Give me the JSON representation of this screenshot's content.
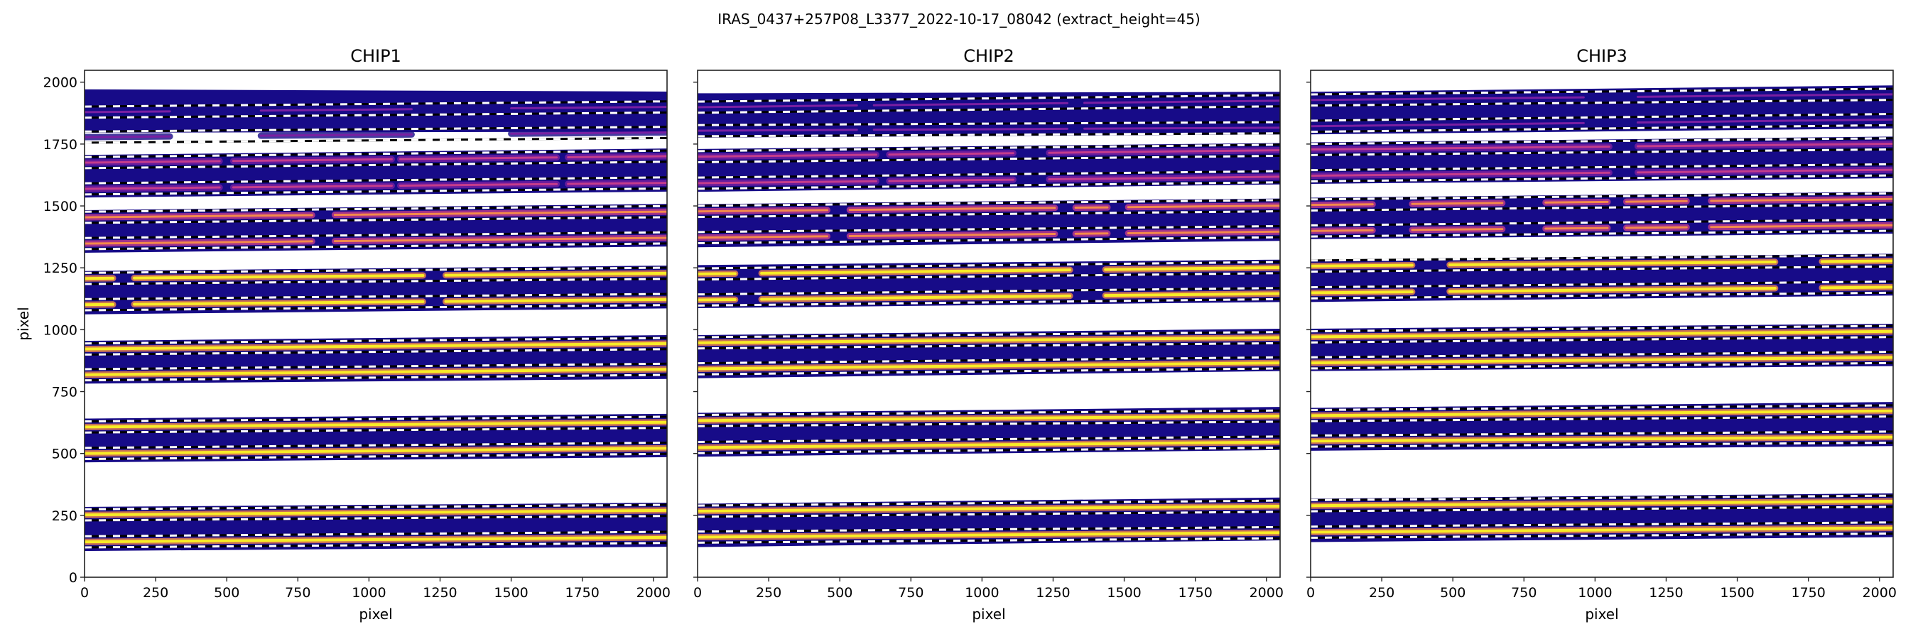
{
  "figure": {
    "suptitle": "IRAS_0437+257P08_L3377_2022-10-17_08042  (extract_height=45)"
  },
  "colors": {
    "band": "#170b88",
    "faint": "#7a1fa2",
    "medium": "#c43c8c",
    "bright": "#f48a4a",
    "peak": "#f9ec26",
    "axes": "#222222"
  },
  "chart_data": [
    {
      "type": "heatmap",
      "title": "CHIP1",
      "xlabel": "pixel",
      "ylabel": "pixel",
      "xlim": [
        0,
        2048
      ],
      "ylim": [
        0,
        2048
      ],
      "xticks": [
        0,
        250,
        500,
        750,
        1000,
        1250,
        1500,
        1750,
        2000
      ],
      "yticks": [
        0,
        250,
        500,
        750,
        1000,
        1250,
        1500,
        1750,
        2000
      ],
      "show_ytick_labels": true,
      "extract_height": 45,
      "orders": [
        {
          "band_bottom": [
            1796,
            1800
          ],
          "band_top": [
            1971,
            1962
          ],
          "traces": [
            [
              1879,
              1900
            ],
            [
              1778,
              1797
            ]
          ],
          "intensity": 0.35,
          "gaps": [
            [
              300,
              620
            ],
            [
              1150,
              1500
            ]
          ]
        },
        {
          "band_bottom": [
            1534,
            1558
          ],
          "band_top": [
            1706,
            1732
          ],
          "traces": [
            [
              1675,
              1701
            ],
            [
              1569,
              1593
            ]
          ],
          "intensity": 0.55,
          "gaps": [
            [
              475,
              523
            ],
            [
              1080,
              1110
            ],
            [
              1660,
              1700
            ]
          ]
        },
        {
          "band_bottom": [
            1311,
            1336
          ],
          "band_top": [
            1483,
            1508
          ],
          "traces": [
            [
              1454,
              1477
            ],
            [
              1348,
              1371
            ]
          ],
          "intensity": 0.75,
          "gaps": [
            [
              800,
              880
            ]
          ]
        },
        {
          "band_bottom": [
            1062,
            1086
          ],
          "band_top": [
            1237,
            1259
          ],
          "traces": [
            [
              1207,
              1228
            ],
            [
              1101,
              1122
            ]
          ],
          "intensity": 1.0,
          "gaps": [
            [
              100,
              175
            ],
            [
              1190,
              1270
            ]
          ]
        },
        {
          "band_bottom": [
            782,
            801
          ],
          "band_top": [
            955,
            978
          ],
          "traces": [
            [
              922,
              944
            ],
            [
              818,
              840
            ]
          ],
          "intensity": 1.0,
          "gaps": []
        },
        {
          "band_bottom": [
            464,
            485
          ],
          "band_top": [
            641,
            660
          ],
          "traces": [
            [
              607,
              626
            ],
            [
              500,
              521
            ]
          ],
          "intensity": 1.0,
          "gaps": []
        },
        {
          "band_bottom": [
            106,
            123
          ],
          "band_top": [
            284,
            301
          ],
          "traces": [
            [
              252,
              270
            ],
            [
              143,
              161
            ]
          ],
          "intensity": 1.0,
          "gaps": []
        }
      ]
    },
    {
      "type": "heatmap",
      "title": "CHIP2",
      "xlabel": "pixel",
      "ylabel": "",
      "xlim": [
        0,
        2048
      ],
      "ylim": [
        0,
        2048
      ],
      "xticks": [
        0,
        250,
        500,
        750,
        1000,
        1250,
        1500,
        1750,
        2000
      ],
      "yticks": [
        0,
        250,
        500,
        750,
        1000,
        1250,
        1500,
        1750,
        2000
      ],
      "show_ytick_labels": false,
      "extract_height": 45,
      "orders": [
        {
          "band_bottom": [
            1776,
            1789
          ],
          "band_top": [
            1955,
            1961
          ],
          "traces": [
            [
              1899,
              1925
            ],
            [
              1804,
              1816
            ]
          ],
          "intensity": 0.4,
          "gaps": [
            [
              560,
              620
            ],
            [
              1300,
              1360
            ]
          ]
        },
        {
          "band_bottom": [
            1557,
            1587
          ],
          "band_top": [
            1730,
            1754
          ],
          "traces": [
            [
              1699,
              1725
            ],
            [
              1592,
              1618
            ]
          ],
          "intensity": 0.55,
          "gaps": [
            [
              628,
              674
            ],
            [
              1110,
              1236
            ]
          ]
        },
        {
          "band_bottom": [
            1333,
            1359
          ],
          "band_top": [
            1507,
            1530
          ],
          "traces": [
            [
              1478,
              1501
            ],
            [
              1372,
              1396
            ]
          ],
          "intensity": 0.75,
          "gaps": [
            [
              456,
              535
            ],
            [
              1256,
              1329
            ],
            [
              1441,
              1514
            ]
          ]
        },
        {
          "band_bottom": [
            1087,
            1112
          ],
          "band_top": [
            1261,
            1283
          ],
          "traces": [
            [
              1225,
              1251
            ],
            [
              1120,
              1146
            ]
          ],
          "intensity": 1.0,
          "gaps": [
            [
              132,
              225
            ],
            [
              1309,
              1434
            ]
          ]
        },
        {
          "band_bottom": [
            804,
            833
          ],
          "band_top": [
            978,
            1004
          ],
          "traces": [
            [
              947,
              968
            ],
            [
              842,
              866
            ]
          ],
          "intensity": 1.0,
          "gaps": []
        },
        {
          "band_bottom": [
            487,
            514
          ],
          "band_top": [
            664,
            688
          ],
          "traces": [
            [
              633,
              651
            ],
            [
              524,
              546
            ]
          ],
          "intensity": 1.0,
          "gaps": []
        },
        {
          "band_bottom": [
            122,
            149
          ],
          "band_top": [
            297,
            322
          ],
          "traces": [
            [
              267,
              287
            ],
            [
              162,
              180
            ]
          ],
          "intensity": 1.0,
          "gaps": []
        }
      ]
    },
    {
      "type": "heatmap",
      "title": "CHIP3",
      "xlabel": "pixel",
      "ylabel": "",
      "xlim": [
        0,
        2048
      ],
      "ylim": [
        0,
        2048
      ],
      "xticks": [
        0,
        250,
        500,
        750,
        1000,
        1250,
        1500,
        1750,
        2000
      ],
      "yticks": [
        0,
        250,
        500,
        750,
        1000,
        1250,
        1500,
        1750,
        2000
      ],
      "show_ytick_labels": false,
      "extract_height": 45,
      "orders": [
        {
          "band_bottom": [
            1789,
            1813
          ],
          "band_top": [
            1961,
            1987
          ],
          "traces": [
            [
              1928,
              1951
            ],
            [
              1822,
              1849
            ]
          ],
          "intensity": 0.45,
          "gaps": [
            [
              960,
              1150
            ]
          ]
        },
        {
          "band_bottom": [
            1589,
            1612
          ],
          "band_top": [
            1757,
            1780
          ],
          "traces": [
            [
              1728,
              1751
            ],
            [
              1622,
              1646
            ]
          ],
          "intensity": 0.55,
          "gaps": [
            [
              1050,
              1150
            ]
          ]
        },
        {
          "band_bottom": [
            1366,
            1388
          ],
          "band_top": [
            1533,
            1557
          ],
          "traces": [
            [
              1504,
              1528
            ],
            [
              1399,
              1422
            ]
          ],
          "intensity": 0.75,
          "gaps": [
            [
              218,
              357
            ],
            [
              674,
              826
            ],
            [
              1044,
              1110
            ],
            [
              1322,
              1408
            ]
          ]
        },
        {
          "band_bottom": [
            1112,
            1138
          ],
          "band_top": [
            1283,
            1307
          ],
          "traces": [
            [
              1257,
              1278
            ],
            [
              1149,
              1172
            ]
          ],
          "intensity": 1.0,
          "gaps": [
            [
              357,
              489
            ],
            [
              1633,
              1798
            ]
          ]
        },
        {
          "band_bottom": [
            833,
            853
          ],
          "band_top": [
            1004,
            1024
          ],
          "traces": [
            [
              971,
              993
            ],
            [
              866,
              888
            ]
          ],
          "intensity": 1.0,
          "gaps": []
        },
        {
          "band_bottom": [
            511,
            530
          ],
          "band_top": [
            684,
            708
          ],
          "traces": [
            [
              653,
              672
            ],
            [
              550,
              566
            ]
          ],
          "intensity": 1.0,
          "gaps": []
        },
        {
          "band_bottom": [
            142,
            162
          ],
          "band_top": [
            317,
            339
          ],
          "traces": [
            [
              289,
              307
            ],
            [
              182,
              199
            ]
          ],
          "intensity": 1.0,
          "gaps": []
        }
      ]
    }
  ]
}
